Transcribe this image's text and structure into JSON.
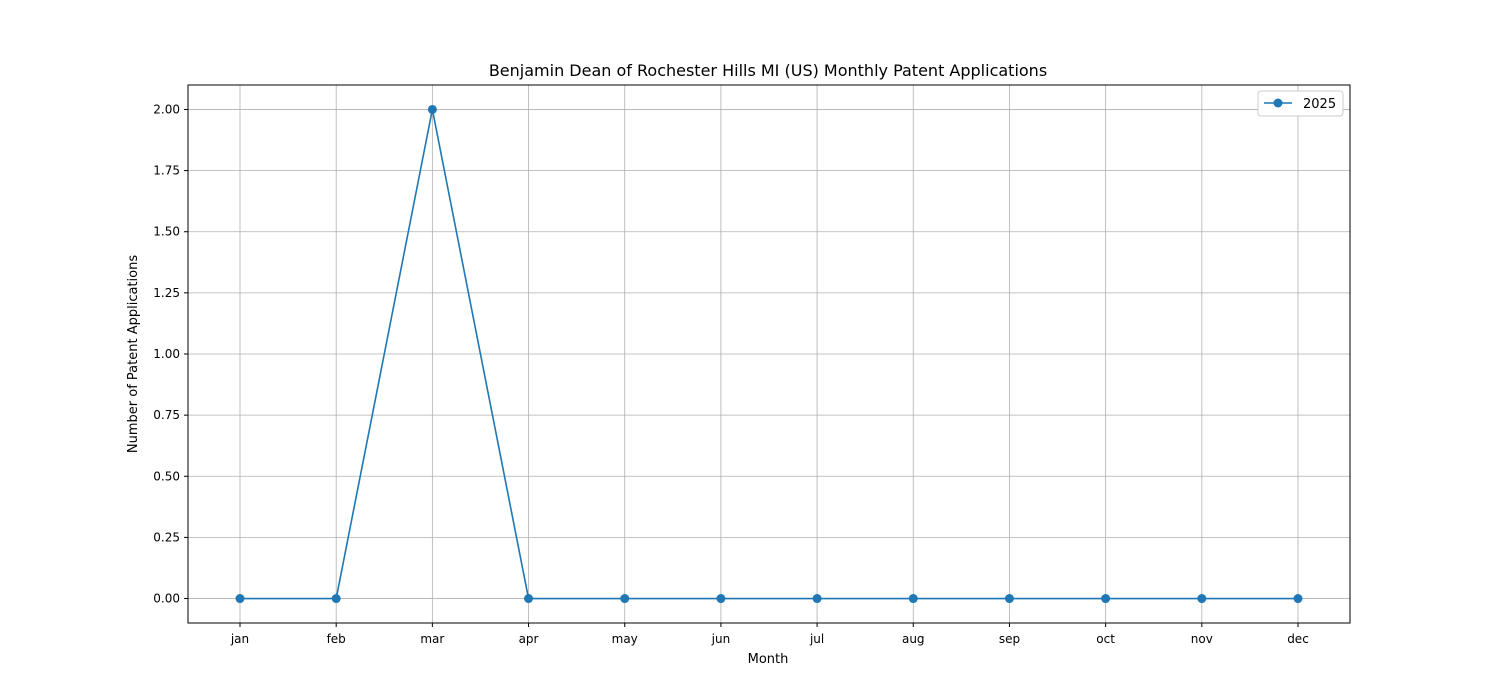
{
  "chart_data": {
    "type": "line",
    "title": "Benjamin Dean of Rochester Hills MI (US) Monthly Patent Applications",
    "xlabel": "Month",
    "ylabel": "Number of Patent Applications",
    "categories": [
      "jan",
      "feb",
      "mar",
      "apr",
      "may",
      "jun",
      "jul",
      "aug",
      "sep",
      "oct",
      "nov",
      "dec"
    ],
    "series": [
      {
        "name": "2025",
        "color": "#1f77b4",
        "values": [
          0,
          0,
          2,
          0,
          0,
          0,
          0,
          0,
          0,
          0,
          0,
          0
        ]
      }
    ],
    "ylim": [
      -0.1,
      2.1
    ],
    "yticks": [
      "0.00",
      "0.25",
      "0.50",
      "0.75",
      "1.00",
      "1.25",
      "1.50",
      "1.75",
      "2.00"
    ],
    "grid": true,
    "legend_position": "top-right"
  }
}
